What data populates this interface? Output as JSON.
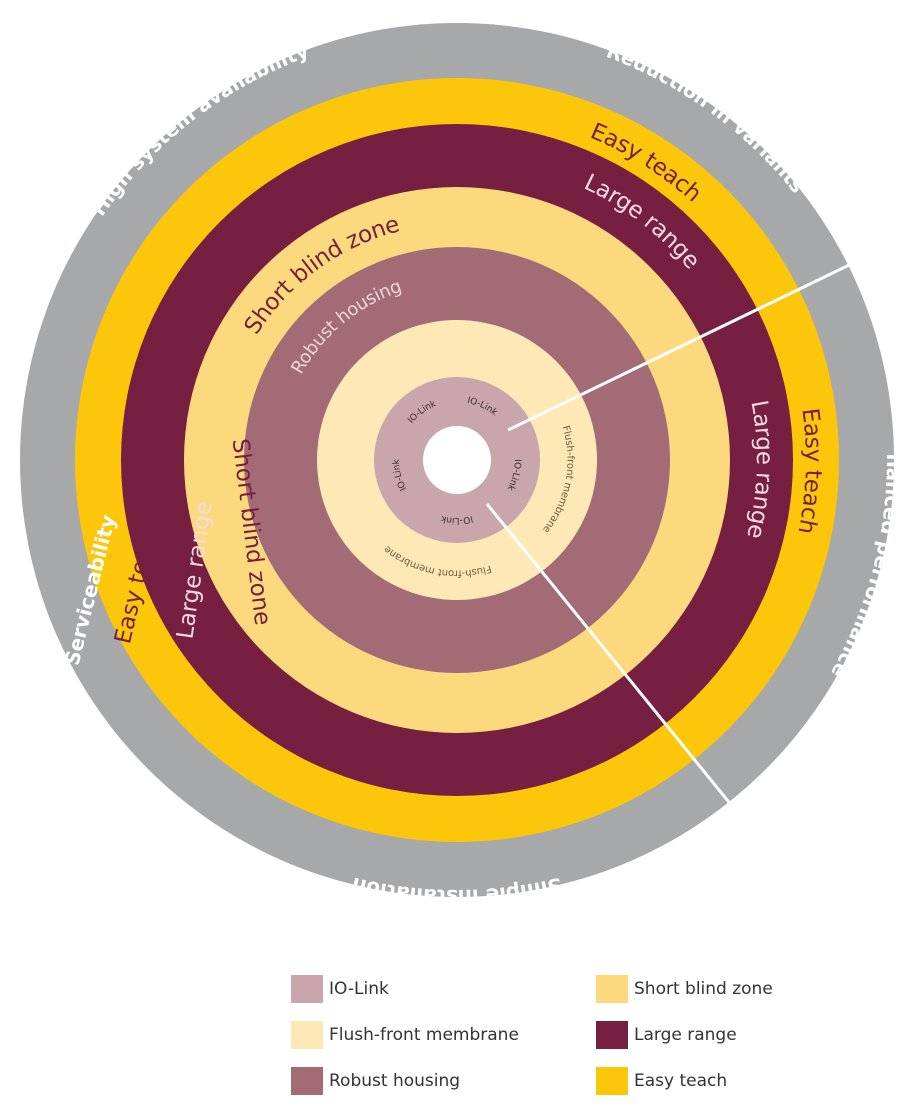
{
  "outer_ring": {
    "color": "#a7a8aa",
    "labels": {
      "reduction": "Reduction in variants",
      "high_availability": "High system availability",
      "enhanced": "Enhanced performance",
      "serviceability": "Serviceability",
      "installation": "Simple installation"
    }
  },
  "rings": [
    {
      "name": "Easy teach",
      "color": "#fcc60a",
      "labels": [
        "Easy teach",
        "Easy teach",
        "Easy teach"
      ]
    },
    {
      "name": "Large range",
      "color": "#761f40",
      "labels": [
        "Large range",
        "Large range",
        "Large range"
      ]
    },
    {
      "name": "Short blind zone",
      "color": "#fcd97c",
      "labels": [
        "Short blind zone",
        "Short blind zone"
      ]
    },
    {
      "name": "Robust housing",
      "color": "#a36b76",
      "labels": [
        "Robust housing"
      ]
    },
    {
      "name": "Flush-front membrane",
      "color": "#fde8b6",
      "labels": [
        "Flush-front membrane",
        "Flush-front membrane"
      ]
    },
    {
      "name": "IO-Link",
      "color": "#c9a5ac",
      "labels": [
        "IO-Link",
        "IO-Link",
        "IO-Link",
        "IO-Link",
        "IO-Link"
      ]
    }
  ],
  "legend": [
    {
      "label": "IO-Link",
      "color": "#c9a5ac"
    },
    {
      "label": "Flush-front membrane",
      "color": "#fde8b6"
    },
    {
      "label": "Robust housing",
      "color": "#a36b76"
    },
    {
      "label": "Short blind zone",
      "color": "#fcd97c"
    },
    {
      "label": "Large range",
      "color": "#761f40"
    },
    {
      "label": "Easy teach",
      "color": "#fcc60a"
    }
  ]
}
